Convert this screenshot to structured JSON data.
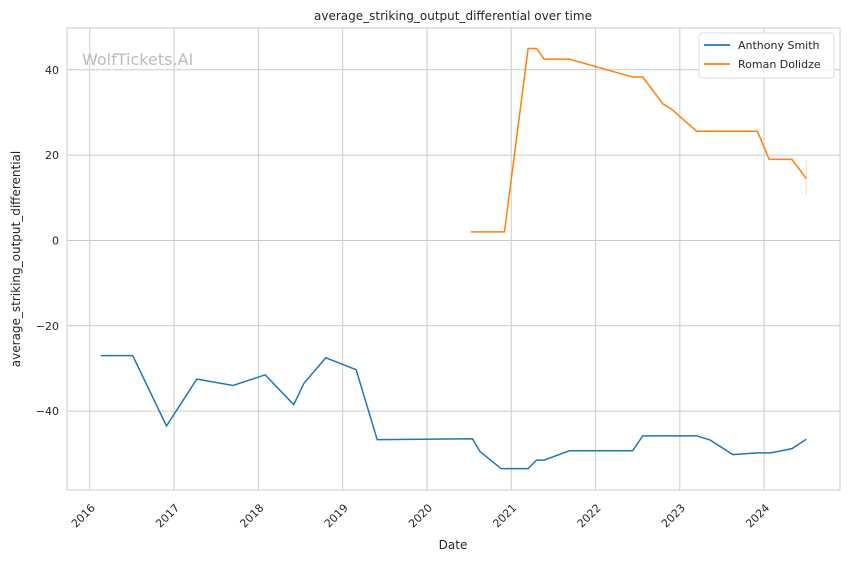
{
  "chart_data": {
    "type": "line",
    "title": "average_striking_output_differential over time",
    "xlabel": "Date",
    "ylabel": "average_striking_output_differential",
    "watermark": "WolfTickets.AI",
    "xlim": [
      2015.73,
      2024.9
    ],
    "ylim": [
      -58.5,
      49.8
    ],
    "xticks": [
      2016,
      2017,
      2018,
      2019,
      2020,
      2021,
      2022,
      2023,
      2024
    ],
    "xtick_labels": [
      "2016",
      "2017",
      "2018",
      "2019",
      "2020",
      "2021",
      "2022",
      "2023",
      "2024"
    ],
    "yticks": [
      -40,
      -20,
      0,
      20,
      40
    ],
    "ytick_labels": [
      "−40",
      "−20",
      "0",
      "20",
      "40"
    ],
    "grid": true,
    "legend_position": "top-right",
    "series": [
      {
        "name": "Anthony Smith",
        "color": "#1f77b4",
        "x": [
          2016.13,
          2016.51,
          2016.91,
          2017.27,
          2017.7,
          2018.08,
          2018.42,
          2018.54,
          2018.8,
          2019.16,
          2019.41,
          2020.54,
          2020.63,
          2020.88,
          2021.2,
          2021.3,
          2021.39,
          2021.69,
          2022.44,
          2022.56,
          2023.2,
          2023.36,
          2023.63,
          2023.92,
          2024.08,
          2024.33,
          2024.5
        ],
        "y": [
          -27,
          -27,
          -43.5,
          -32.5,
          -34,
          -31.5,
          -38.5,
          -33.5,
          -27.5,
          -30.3,
          -46.7,
          -46.5,
          -49.5,
          -53.5,
          -53.5,
          -51.5,
          -51.5,
          -49.3,
          -49.3,
          -45.8,
          -45.8,
          -46.8,
          -50.2,
          -49.8,
          -49.8,
          -48.8,
          -46.6
        ]
      },
      {
        "name": "Roman Dolidze",
        "color": "#ff7f0e",
        "x": [
          2020.52,
          2020.92,
          2021.2,
          2021.3,
          2021.39,
          2021.69,
          2022.44,
          2022.56,
          2022.8,
          2022.9,
          2023.2,
          2023.92,
          2024.06,
          2024.33,
          2024.5
        ],
        "y": [
          2,
          2,
          45,
          45,
          42.5,
          42.5,
          38.3,
          38.3,
          32,
          30.8,
          25.6,
          25.6,
          19,
          19,
          14.5
        ]
      }
    ]
  }
}
